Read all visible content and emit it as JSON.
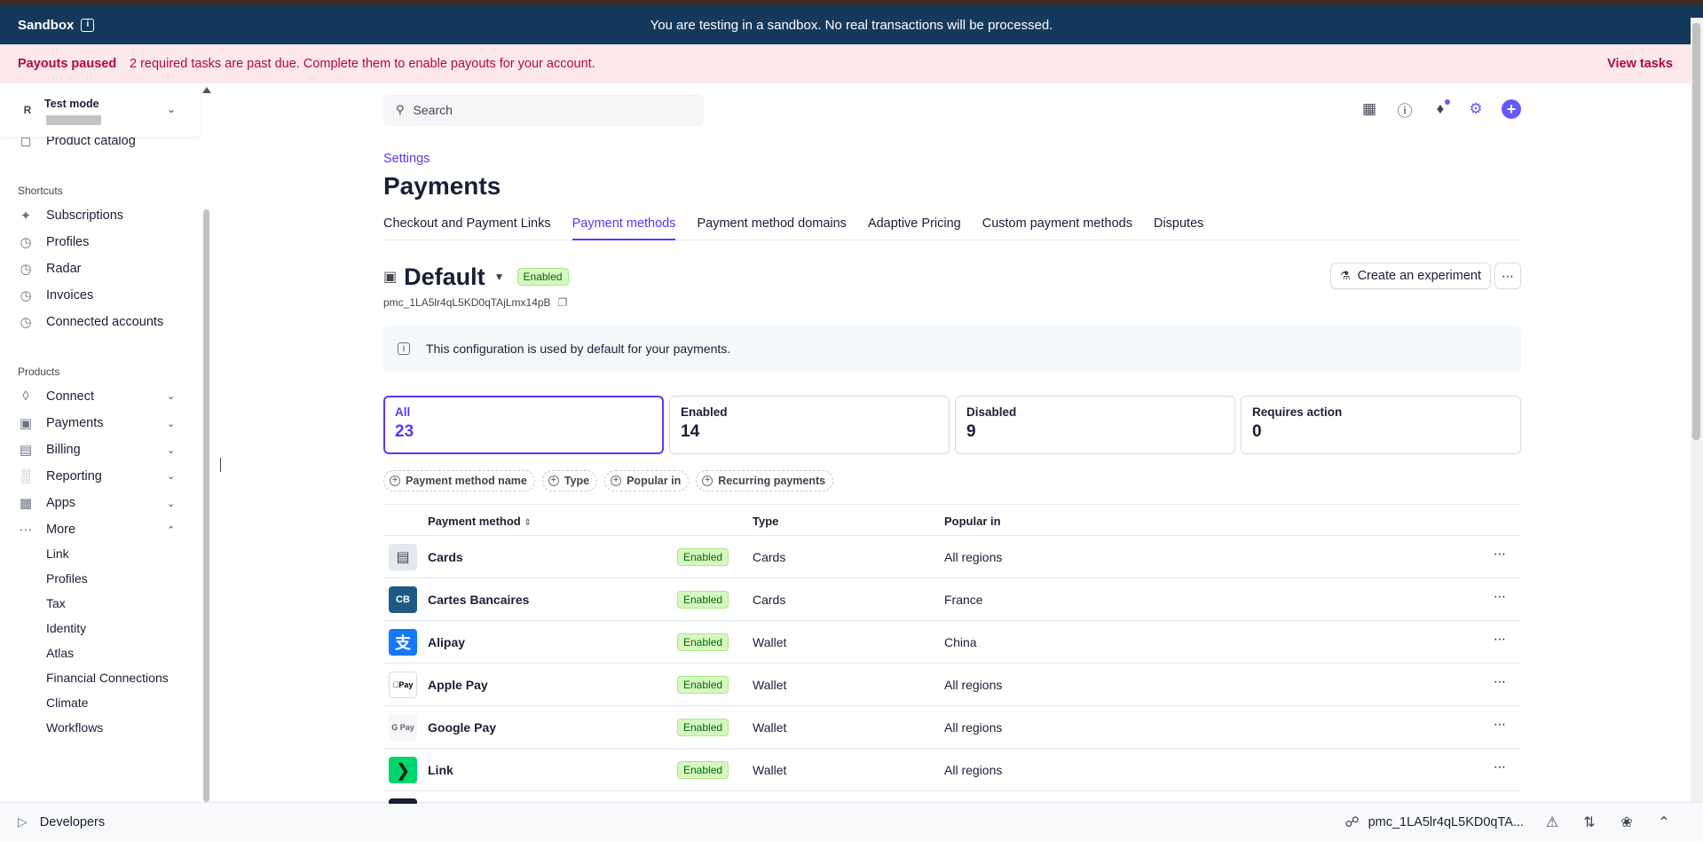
{
  "banner": {
    "sandbox_label": "Sandbox",
    "sandbox_message": "You are testing in a sandbox. No real transactions will be processed."
  },
  "payout": {
    "title": "Payouts paused",
    "message": "2 required tasks are past due. Complete them to enable payouts for your account.",
    "link": "View tasks"
  },
  "account": {
    "initial": "R",
    "mode": "Test mode"
  },
  "sidebar": {
    "product_catalog": "Product catalog",
    "shortcuts_label": "Shortcuts",
    "shortcuts": [
      "Subscriptions",
      "Profiles",
      "Radar",
      "Invoices",
      "Connected accounts"
    ],
    "products_label": "Products",
    "products": [
      "Connect",
      "Payments",
      "Billing",
      "Reporting",
      "Apps",
      "More"
    ],
    "more_items": [
      "Link",
      "Profiles",
      "Tax",
      "Identity",
      "Atlas",
      "Financial Connections",
      "Climate",
      "Workflows"
    ],
    "developers": "Developers"
  },
  "search": {
    "placeholder": "Search"
  },
  "breadcrumb": "Settings",
  "page_title": "Payments",
  "tabs": [
    "Checkout and Payment Links",
    "Payment methods",
    "Payment method domains",
    "Adaptive Pricing",
    "Custom payment methods",
    "Disputes"
  ],
  "config": {
    "name": "Default",
    "status": "Enabled",
    "id": "pmc_1LA5lr4qL5KD0qTAjLmx14pB",
    "experiment_button": "Create an experiment",
    "notice": "This configuration is used by default for your payments."
  },
  "filters": [
    {
      "label": "All",
      "value": "23"
    },
    {
      "label": "Enabled",
      "value": "14"
    },
    {
      "label": "Disabled",
      "value": "9"
    },
    {
      "label": "Requires action",
      "value": "0"
    }
  ],
  "chips": [
    "Payment method name",
    "Type",
    "Popular in",
    "Recurring payments"
  ],
  "table": {
    "headers": {
      "method": "Payment method",
      "type": "Type",
      "popular": "Popular in"
    },
    "rows": [
      {
        "name": "Cards",
        "status": "Enabled",
        "type": "Cards",
        "popular": "All regions"
      },
      {
        "name": "Cartes Bancaires",
        "status": "Enabled",
        "type": "Cards",
        "popular": "France"
      },
      {
        "name": "Alipay",
        "status": "Enabled",
        "type": "Wallet",
        "popular": "China"
      },
      {
        "name": "Apple Pay",
        "status": "Enabled",
        "type": "Wallet",
        "popular": "All regions"
      },
      {
        "name": "Google Pay",
        "status": "Enabled",
        "type": "Wallet",
        "popular": "All regions"
      },
      {
        "name": "Link",
        "status": "Enabled",
        "type": "Wallet",
        "popular": "All regions"
      }
    ]
  },
  "footer": {
    "pmc_short": "pmc_1LA5lr4qL5KD0qTA..."
  },
  "logos": {
    "apple_pay": "Pay",
    "google_pay": "G Pay",
    "cb": "CB"
  },
  "colors": {
    "accent": "#533afd",
    "sandbox_bar": "#15395b",
    "payout_bar": "#fde8ec",
    "payout_text": "#b3093c",
    "enabled_badge": "#d7f7c2"
  }
}
